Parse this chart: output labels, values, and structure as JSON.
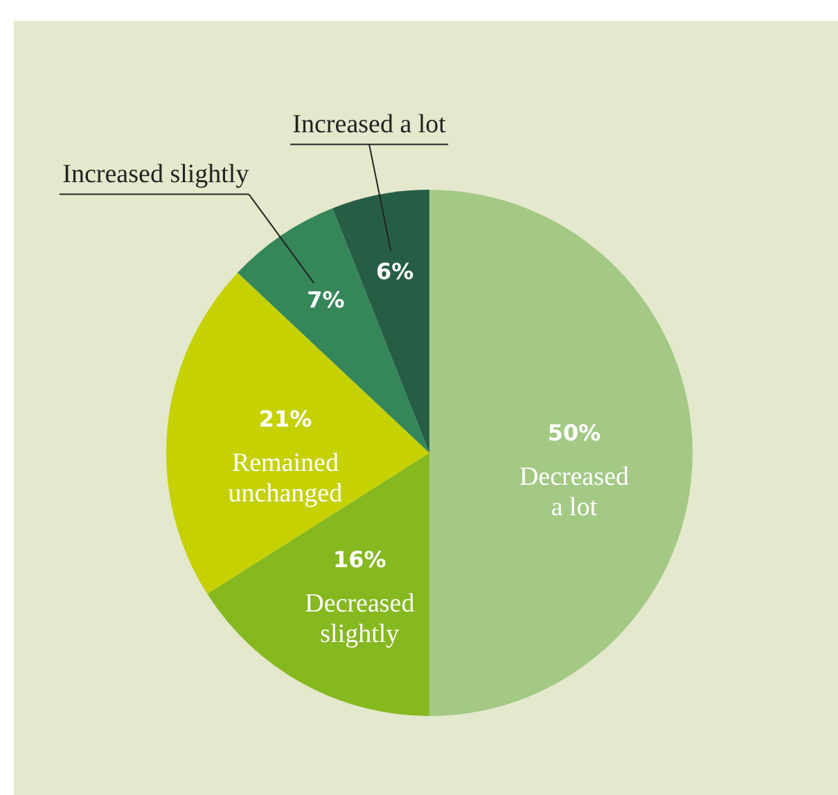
{
  "chart_data": {
    "type": "pie",
    "categories": [
      "Decreased a lot",
      "Decreased slightly",
      "Remained unchanged",
      "Increased slightly",
      "Increased a lot"
    ],
    "values": [
      50,
      16,
      21,
      7,
      6
    ],
    "colors": [
      "#a3c985",
      "#86b820",
      "#c5d100",
      "#35875a",
      "#265e45"
    ],
    "value_labels": [
      "50%",
      "16%",
      "21%",
      "7%",
      "6%"
    ]
  }
}
